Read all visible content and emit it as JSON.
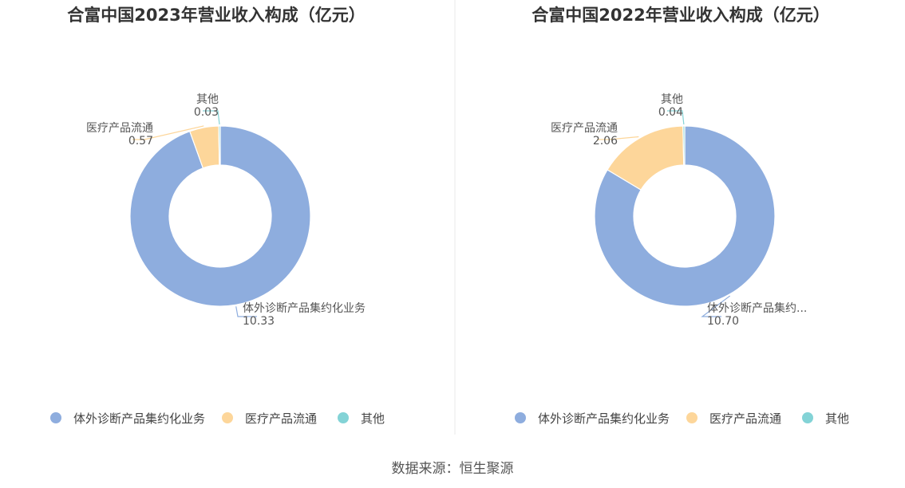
{
  "source_text": "数据来源：恒生聚源",
  "chart_data": [
    {
      "type": "pie",
      "title": "合富中国2023年营业收入构成（亿元）",
      "categories": [
        "体外诊断产品集约化业务",
        "医疗产品流通",
        "其他"
      ],
      "category_labels": [
        "体外诊断产品集约化业务",
        "医疗产品流通",
        "其他"
      ],
      "values": [
        10.33,
        0.57,
        0.03
      ],
      "value_labels": [
        "10.33",
        "0.57",
        "0.03"
      ],
      "colors": [
        "#8eadde",
        "#fdd69a",
        "#83d3d6"
      ],
      "legend_position": "bottom"
    },
    {
      "type": "pie",
      "title": "合富中国2022年营业收入构成（亿元）",
      "categories": [
        "体外诊断产品集约化业务",
        "医疗产品流通",
        "其他"
      ],
      "category_labels": [
        "体外诊断产品集约...",
        "医疗产品流通",
        "其他"
      ],
      "values": [
        10.7,
        2.06,
        0.04
      ],
      "value_labels": [
        "10.70",
        "2.06",
        "0.04"
      ],
      "colors": [
        "#8eadde",
        "#fdd69a",
        "#83d3d6"
      ],
      "legend_position": "bottom"
    }
  ]
}
